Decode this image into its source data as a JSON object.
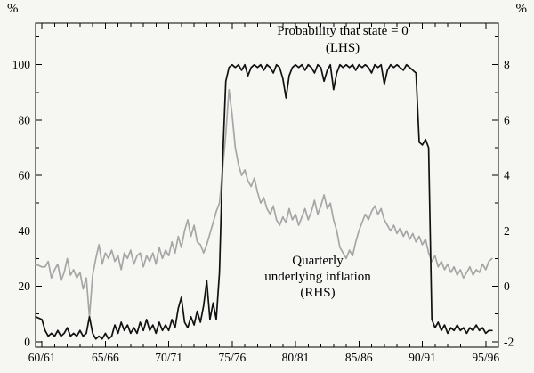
{
  "figure": {
    "background": "#f6f6f3",
    "line_black": "#111111",
    "line_gray": "#a6a6a6"
  },
  "chart_data": {
    "type": "line",
    "title": "",
    "annotations": {
      "probability": {
        "line1": "Probability that state = 0",
        "line2": "(LHS)"
      },
      "inflation": {
        "line1": "Quarterly",
        "line2": "underlying inflation",
        "line3": "(RHS)"
      }
    },
    "left_axis": {
      "unit": "%",
      "ticks": [
        0,
        20,
        40,
        60,
        80,
        100
      ],
      "min": -2,
      "max": 115
    },
    "right_axis": {
      "unit": "%",
      "tick_labels": [
        -2,
        0,
        2,
        4,
        6,
        8
      ],
      "relation": "right_value = (left_value - 20) / 10"
    },
    "x_axis": {
      "min": 1959.5,
      "max": 1996,
      "tick_years": [
        1960,
        1965,
        1970,
        1975,
        1980,
        1985,
        1990,
        1995
      ],
      "tick_labels": [
        "60/61",
        "65/66",
        "70/71",
        "75/76",
        "80/81",
        "85/86",
        "90/91",
        "95/96"
      ],
      "minor_step_years": 1
    },
    "grid": false,
    "legend": "in-plot annotations",
    "series": [
      {
        "id": "inflation-line",
        "name": "Quarterly underlying inflation (RHS)",
        "axis": "right",
        "color": "#a6a6a6",
        "width": 1.7,
        "points": [
          [
            1959.5,
            0.8
          ],
          [
            1960,
            0.7
          ],
          [
            1960.25,
            0.7
          ],
          [
            1960.5,
            0.9
          ],
          [
            1960.75,
            0.3
          ],
          [
            1961,
            0.6
          ],
          [
            1961.25,
            0.8
          ],
          [
            1961.5,
            0.2
          ],
          [
            1961.75,
            0.5
          ],
          [
            1962,
            1.0
          ],
          [
            1962.25,
            0.4
          ],
          [
            1962.5,
            0.6
          ],
          [
            1962.75,
            0.3
          ],
          [
            1963,
            0.5
          ],
          [
            1963.25,
            -0.1
          ],
          [
            1963.5,
            0.3
          ],
          [
            1963.75,
            -1.1
          ],
          [
            1964,
            0.4
          ],
          [
            1964.25,
            1.0
          ],
          [
            1964.5,
            1.5
          ],
          [
            1964.75,
            0.8
          ],
          [
            1965,
            1.2
          ],
          [
            1965.25,
            1.0
          ],
          [
            1965.5,
            1.3
          ],
          [
            1965.75,
            0.9
          ],
          [
            1966,
            1.1
          ],
          [
            1966.25,
            0.6
          ],
          [
            1966.5,
            1.2
          ],
          [
            1966.75,
            1.0
          ],
          [
            1967,
            1.3
          ],
          [
            1967.25,
            0.8
          ],
          [
            1967.5,
            1.1
          ],
          [
            1967.75,
            1.2
          ],
          [
            1968,
            0.7
          ],
          [
            1968.25,
            1.1
          ],
          [
            1968.5,
            0.9
          ],
          [
            1968.75,
            1.2
          ],
          [
            1969,
            0.8
          ],
          [
            1969.25,
            1.4
          ],
          [
            1969.5,
            1.0
          ],
          [
            1969.75,
            1.3
          ],
          [
            1970,
            1.1
          ],
          [
            1970.25,
            1.6
          ],
          [
            1970.5,
            1.2
          ],
          [
            1970.75,
            1.8
          ],
          [
            1971,
            1.4
          ],
          [
            1971.25,
            2.0
          ],
          [
            1971.5,
            2.4
          ],
          [
            1971.75,
            1.8
          ],
          [
            1972,
            2.2
          ],
          [
            1972.25,
            1.6
          ],
          [
            1972.5,
            1.5
          ],
          [
            1972.75,
            1.2
          ],
          [
            1973,
            1.5
          ],
          [
            1973.25,
            1.9
          ],
          [
            1973.5,
            2.3
          ],
          [
            1973.75,
            2.7
          ],
          [
            1974,
            3.0
          ],
          [
            1974.25,
            4.2
          ],
          [
            1974.5,
            5.5
          ],
          [
            1974.75,
            7.1
          ],
          [
            1975,
            6.2
          ],
          [
            1975.25,
            5.0
          ],
          [
            1975.5,
            4.4
          ],
          [
            1975.75,
            4.0
          ],
          [
            1976,
            4.2
          ],
          [
            1976.25,
            3.8
          ],
          [
            1976.5,
            3.6
          ],
          [
            1976.75,
            3.9
          ],
          [
            1977,
            3.4
          ],
          [
            1977.25,
            3.0
          ],
          [
            1977.5,
            3.2
          ],
          [
            1977.75,
            2.8
          ],
          [
            1978,
            2.6
          ],
          [
            1978.25,
            2.9
          ],
          [
            1978.5,
            2.4
          ],
          [
            1978.75,
            2.2
          ],
          [
            1979,
            2.5
          ],
          [
            1979.25,
            2.3
          ],
          [
            1979.5,
            2.8
          ],
          [
            1979.75,
            2.4
          ],
          [
            1980,
            2.6
          ],
          [
            1980.25,
            2.2
          ],
          [
            1980.5,
            2.5
          ],
          [
            1980.75,
            2.8
          ],
          [
            1981,
            2.4
          ],
          [
            1981.25,
            2.7
          ],
          [
            1981.5,
            3.1
          ],
          [
            1981.75,
            2.6
          ],
          [
            1982,
            2.9
          ],
          [
            1982.25,
            3.3
          ],
          [
            1982.5,
            2.8
          ],
          [
            1982.75,
            3.0
          ],
          [
            1983,
            2.4
          ],
          [
            1983.25,
            2.0
          ],
          [
            1983.5,
            1.4
          ],
          [
            1983.75,
            1.2
          ],
          [
            1984,
            1.0
          ],
          [
            1984.25,
            1.3
          ],
          [
            1984.5,
            1.1
          ],
          [
            1984.75,
            1.6
          ],
          [
            1985,
            2.0
          ],
          [
            1985.25,
            2.3
          ],
          [
            1985.5,
            2.6
          ],
          [
            1985.75,
            2.4
          ],
          [
            1986,
            2.7
          ],
          [
            1986.25,
            2.9
          ],
          [
            1986.5,
            2.6
          ],
          [
            1986.75,
            2.8
          ],
          [
            1987,
            2.4
          ],
          [
            1987.25,
            2.2
          ],
          [
            1987.5,
            2.0
          ],
          [
            1987.75,
            2.2
          ],
          [
            1988,
            1.9
          ],
          [
            1988.25,
            2.1
          ],
          [
            1988.5,
            1.8
          ],
          [
            1988.75,
            2.0
          ],
          [
            1989,
            1.7
          ],
          [
            1989.25,
            1.9
          ],
          [
            1989.5,
            1.6
          ],
          [
            1989.75,
            1.8
          ],
          [
            1990,
            1.5
          ],
          [
            1990.25,
            1.7
          ],
          [
            1990.5,
            1.2
          ],
          [
            1990.75,
            0.9
          ],
          [
            1991,
            1.1
          ],
          [
            1991.25,
            0.7
          ],
          [
            1991.5,
            0.9
          ],
          [
            1991.75,
            0.6
          ],
          [
            1992,
            0.8
          ],
          [
            1992.25,
            0.5
          ],
          [
            1992.5,
            0.7
          ],
          [
            1992.75,
            0.4
          ],
          [
            1993,
            0.6
          ],
          [
            1993.25,
            0.3
          ],
          [
            1993.5,
            0.5
          ],
          [
            1993.75,
            0.7
          ],
          [
            1994,
            0.4
          ],
          [
            1994.25,
            0.6
          ],
          [
            1994.5,
            0.5
          ],
          [
            1994.75,
            0.8
          ],
          [
            1995,
            0.6
          ],
          [
            1995.25,
            0.9
          ],
          [
            1995.5,
            1.0
          ]
        ]
      },
      {
        "id": "probability-line",
        "name": "Probability that state = 0 (LHS)",
        "axis": "left",
        "color": "#111111",
        "width": 1.7,
        "points": [
          [
            1959.5,
            9
          ],
          [
            1960,
            8
          ],
          [
            1960.25,
            4
          ],
          [
            1960.5,
            2
          ],
          [
            1960.75,
            3
          ],
          [
            1961,
            2
          ],
          [
            1961.25,
            4
          ],
          [
            1961.5,
            2
          ],
          [
            1961.75,
            3
          ],
          [
            1962,
            5
          ],
          [
            1962.25,
            2
          ],
          [
            1962.5,
            3
          ],
          [
            1962.75,
            2
          ],
          [
            1963,
            4
          ],
          [
            1963.25,
            2
          ],
          [
            1963.5,
            3
          ],
          [
            1963.75,
            9
          ],
          [
            1964,
            3
          ],
          [
            1964.25,
            1
          ],
          [
            1964.5,
            2
          ],
          [
            1964.75,
            1
          ],
          [
            1965,
            3
          ],
          [
            1965.25,
            1
          ],
          [
            1965.5,
            2
          ],
          [
            1965.75,
            6
          ],
          [
            1966,
            3
          ],
          [
            1966.25,
            7
          ],
          [
            1966.5,
            4
          ],
          [
            1966.75,
            6
          ],
          [
            1967,
            3
          ],
          [
            1967.25,
            5
          ],
          [
            1967.5,
            3
          ],
          [
            1967.75,
            7
          ],
          [
            1968,
            4
          ],
          [
            1968.25,
            8
          ],
          [
            1968.5,
            4
          ],
          [
            1968.75,
            6
          ],
          [
            1969,
            3
          ],
          [
            1969.25,
            7
          ],
          [
            1969.5,
            4
          ],
          [
            1969.75,
            6
          ],
          [
            1970,
            4
          ],
          [
            1970.25,
            8
          ],
          [
            1970.5,
            5
          ],
          [
            1970.75,
            12
          ],
          [
            1971,
            16
          ],
          [
            1971.25,
            7
          ],
          [
            1971.5,
            5
          ],
          [
            1971.75,
            9
          ],
          [
            1972,
            6
          ],
          [
            1972.25,
            11
          ],
          [
            1972.5,
            7
          ],
          [
            1972.75,
            13
          ],
          [
            1973,
            22
          ],
          [
            1973.25,
            8
          ],
          [
            1973.5,
            14
          ],
          [
            1973.75,
            8
          ],
          [
            1974,
            25
          ],
          [
            1974.25,
            65
          ],
          [
            1974.5,
            94
          ],
          [
            1974.75,
            99
          ],
          [
            1975,
            100
          ],
          [
            1975.25,
            99
          ],
          [
            1975.5,
            100
          ],
          [
            1975.75,
            98
          ],
          [
            1976,
            100
          ],
          [
            1976.25,
            96
          ],
          [
            1976.5,
            99
          ],
          [
            1976.75,
            100
          ],
          [
            1977,
            99
          ],
          [
            1977.25,
            100
          ],
          [
            1977.5,
            98
          ],
          [
            1977.75,
            100
          ],
          [
            1978,
            99
          ],
          [
            1978.25,
            97
          ],
          [
            1978.5,
            100
          ],
          [
            1978.75,
            99
          ],
          [
            1979,
            95
          ],
          [
            1979.25,
            88
          ],
          [
            1979.5,
            96
          ],
          [
            1979.75,
            99
          ],
          [
            1980,
            100
          ],
          [
            1980.25,
            99
          ],
          [
            1980.5,
            100
          ],
          [
            1980.75,
            98
          ],
          [
            1981,
            100
          ],
          [
            1981.25,
            99
          ],
          [
            1981.5,
            97
          ],
          [
            1981.75,
            100
          ],
          [
            1982,
            99
          ],
          [
            1982.25,
            94
          ],
          [
            1982.5,
            98
          ],
          [
            1982.75,
            100
          ],
          [
            1983,
            91
          ],
          [
            1983.25,
            97
          ],
          [
            1983.5,
            100
          ],
          [
            1983.75,
            99
          ],
          [
            1984,
            100
          ],
          [
            1984.25,
            99
          ],
          [
            1984.5,
            100
          ],
          [
            1984.75,
            98
          ],
          [
            1985,
            100
          ],
          [
            1985.25,
            99
          ],
          [
            1985.5,
            100
          ],
          [
            1985.75,
            99
          ],
          [
            1986,
            97
          ],
          [
            1986.25,
            100
          ],
          [
            1986.5,
            99
          ],
          [
            1986.75,
            100
          ],
          [
            1987,
            93
          ],
          [
            1987.25,
            98
          ],
          [
            1987.5,
            100
          ],
          [
            1987.75,
            99
          ],
          [
            1988,
            100
          ],
          [
            1988.25,
            99
          ],
          [
            1988.5,
            98
          ],
          [
            1988.75,
            100
          ],
          [
            1989,
            99
          ],
          [
            1989.25,
            98
          ],
          [
            1989.5,
            97
          ],
          [
            1989.75,
            72
          ],
          [
            1990,
            71
          ],
          [
            1990.25,
            73
          ],
          [
            1990.5,
            70
          ],
          [
            1990.75,
            8
          ],
          [
            1991,
            5
          ],
          [
            1991.25,
            7
          ],
          [
            1991.5,
            4
          ],
          [
            1991.75,
            6
          ],
          [
            1992,
            3
          ],
          [
            1992.25,
            5
          ],
          [
            1992.5,
            4
          ],
          [
            1992.75,
            6
          ],
          [
            1993,
            4
          ],
          [
            1993.25,
            5
          ],
          [
            1993.5,
            3
          ],
          [
            1993.75,
            5
          ],
          [
            1994,
            4
          ],
          [
            1994.25,
            6
          ],
          [
            1994.5,
            4
          ],
          [
            1994.75,
            5
          ],
          [
            1995,
            3
          ],
          [
            1995.25,
            4
          ],
          [
            1995.5,
            4
          ]
        ]
      }
    ]
  }
}
